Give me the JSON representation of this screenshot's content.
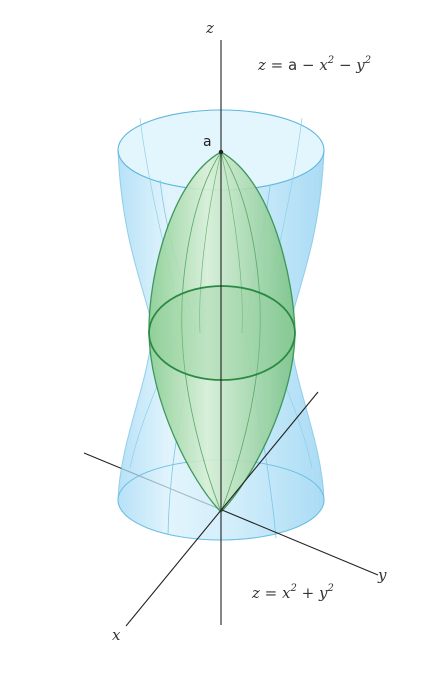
{
  "axes": {
    "z_label": "z",
    "x_label": "x",
    "y_label": "y"
  },
  "point_label": "a",
  "equations": {
    "top": {
      "lhs": "z = ",
      "a": "a",
      "mid": " − x",
      "exp1": "2",
      "mid2": " − y",
      "exp2": "2"
    },
    "bottom": {
      "lhs": "z = x",
      "exp1": "2",
      "mid": " + y",
      "exp2": "2"
    }
  },
  "colors": {
    "surface_blue": "#bfe6f9",
    "surface_blue_edge": "#6bbfe3",
    "surface_green": "#9fd5a3",
    "surface_green_edge": "#2f8f4a",
    "axis": "#222222"
  }
}
